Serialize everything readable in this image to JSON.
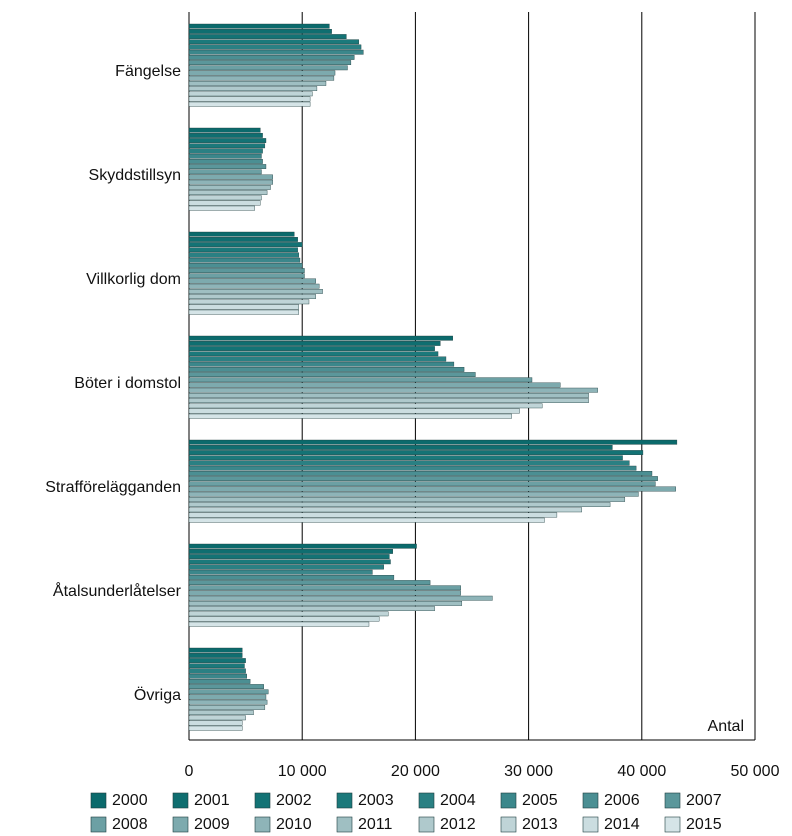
{
  "chart_data": {
    "type": "barh",
    "x_label": "Antal",
    "categories": [
      "Fängelse",
      "Skyddstillsyn",
      "Villkorlig dom",
      "Böter i domstol",
      "Strafförelägganden",
      "Åtalsunderlåtelser",
      "Övriga"
    ],
    "xlim": [
      0,
      50000
    ],
    "xticks": [
      0,
      {
        "value": 10000,
        "label": "10 000"
      },
      {
        "value": 20000,
        "label": "20 000"
      },
      {
        "value": 30000,
        "label": "30 000"
      },
      {
        "value": 40000,
        "label": "40 000"
      },
      {
        "value": 50000,
        "label": "50 000"
      }
    ],
    "grid": true,
    "legend": "bottom",
    "series": [
      {
        "name": "2000",
        "color": "#0b6a6c",
        "values": [
          12400,
          6300,
          9300,
          23300,
          43100,
          20100,
          4700
        ]
      },
      {
        "name": "2001",
        "color": "#0f6e70",
        "values": [
          12600,
          6500,
          9600,
          22200,
          37400,
          18000,
          4700
        ]
      },
      {
        "name": "2002",
        "color": "#137375",
        "values": [
          13900,
          6800,
          10000,
          21700,
          40100,
          17700,
          5000
        ]
      },
      {
        "name": "2003",
        "color": "#1b797b",
        "values": [
          15000,
          6700,
          9600,
          22000,
          38300,
          17800,
          4900
        ]
      },
      {
        "name": "2004",
        "color": "#2a8083",
        "values": [
          15200,
          6500,
          9700,
          22700,
          38900,
          17200,
          5000
        ]
      },
      {
        "name": "2005",
        "color": "#3b878b",
        "values": [
          15400,
          6400,
          9800,
          23400,
          39500,
          16200,
          5100
        ]
      },
      {
        "name": "2006",
        "color": "#4b8f93",
        "values": [
          14600,
          6500,
          10000,
          24300,
          40900,
          18100,
          5400
        ]
      },
      {
        "name": "2007",
        "color": "#5b979b",
        "values": [
          14300,
          6800,
          10200,
          25300,
          41400,
          21300,
          6600
        ]
      },
      {
        "name": "2008",
        "color": "#6ca0a4",
        "values": [
          14000,
          6400,
          10200,
          30300,
          41200,
          24000,
          7000
        ]
      },
      {
        "name": "2009",
        "color": "#7daaae",
        "values": [
          12900,
          7400,
          11200,
          32800,
          43000,
          24000,
          6800
        ]
      },
      {
        "name": "2010",
        "color": "#8eb4b8",
        "values": [
          12800,
          7400,
          11500,
          36100,
          39700,
          26800,
          6900
        ]
      },
      {
        "name": "2011",
        "color": "#9fbfc2",
        "values": [
          12100,
          7200,
          11800,
          35300,
          38500,
          24100,
          6700
        ]
      },
      {
        "name": "2012",
        "color": "#afc9cc",
        "values": [
          11300,
          6900,
          11200,
          35300,
          37200,
          21700,
          5700
        ]
      },
      {
        "name": "2013",
        "color": "#bfd4d7",
        "values": [
          10900,
          6400,
          10600,
          31200,
          34700,
          17600,
          5000
        ]
      },
      {
        "name": "2014",
        "color": "#cbdde0",
        "values": [
          10700,
          6300,
          9700,
          29200,
          32500,
          16800,
          4700
        ]
      },
      {
        "name": "2015",
        "color": "#d5e4e7",
        "values": [
          10700,
          5800,
          9700,
          28500,
          31400,
          15900,
          4700
        ]
      }
    ]
  }
}
